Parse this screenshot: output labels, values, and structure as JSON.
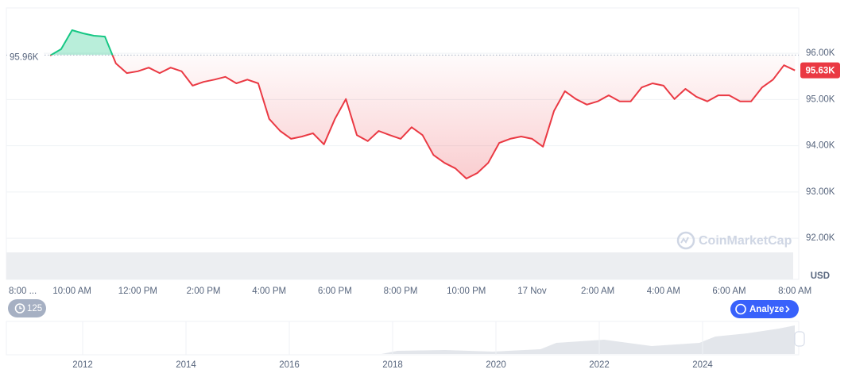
{
  "chart_data": {
    "type": "line",
    "series": [
      {
        "name": "BTC",
        "color": "#ea3943",
        "up_color": "#16c784",
        "values": [
          null,
          null,
          null,
          null,
          95.95,
          96.09,
          96.5,
          96.43,
          96.38,
          96.36,
          95.78,
          95.57,
          95.61,
          95.69,
          95.57,
          95.69,
          95.61,
          95.3,
          95.38,
          95.43,
          95.49,
          95.35,
          95.43,
          95.35,
          94.58,
          94.32,
          94.15,
          94.2,
          94.27,
          94.03,
          94.58,
          95.01,
          94.23,
          94.1,
          94.32,
          94.23,
          94.15,
          94.4,
          94.23,
          93.8,
          93.63,
          93.51,
          93.29,
          93.41,
          93.63,
          94.06,
          94.15,
          94.2,
          94.15,
          93.98,
          94.75,
          95.18,
          95.01,
          94.89,
          94.96,
          95.09,
          94.96,
          94.96,
          95.26,
          95.35,
          95.3,
          95.01,
          95.23,
          95.06,
          94.96,
          95.09,
          95.09,
          94.96,
          94.96,
          95.26,
          95.43,
          95.74,
          95.63
        ]
      }
    ],
    "ylim": [
      91.11,
      96.98
    ],
    "yticks": [
      {
        "value": 92,
        "label": "92.00K"
      },
      {
        "value": 93,
        "label": "93.00K"
      },
      {
        "value": 94,
        "label": "94.00K"
      },
      {
        "value": 95,
        "label": "95.00K"
      },
      {
        "value": 96,
        "label": "96.00K"
      }
    ],
    "xlim": [
      0,
      72.35
    ],
    "xticks": [
      {
        "value": 0,
        "label": "8:00 ..."
      },
      {
        "value": 6,
        "label": "10:00 AM"
      },
      {
        "value": 12,
        "label": "12:00 PM"
      },
      {
        "value": 18,
        "label": "2:00 PM"
      },
      {
        "value": 24,
        "label": "4:00 PM"
      },
      {
        "value": 30,
        "label": "6:00 PM"
      },
      {
        "value": 36,
        "label": "8:00 PM"
      },
      {
        "value": 42,
        "label": "10:00 PM"
      },
      {
        "value": 48,
        "label": "17 Nov"
      },
      {
        "value": 54,
        "label": "2:00 AM"
      },
      {
        "value": 60,
        "label": "4:00 AM"
      },
      {
        "value": 66,
        "label": "6:00 AM"
      },
      {
        "value": 72,
        "label": "8:00 AM"
      }
    ],
    "baseline": {
      "value": 95.96,
      "label": "95.96K"
    },
    "last_price": {
      "value": 95.63,
      "label": "95.63K"
    },
    "currency": "USD",
    "grid": true
  },
  "watermark": "CoinMarketCap",
  "history_badge": "125",
  "analyze_button": "Analyze",
  "navigator": {
    "years": [
      "2012",
      "2014",
      "2016",
      "2018",
      "2020",
      "2022",
      "2024"
    ]
  }
}
